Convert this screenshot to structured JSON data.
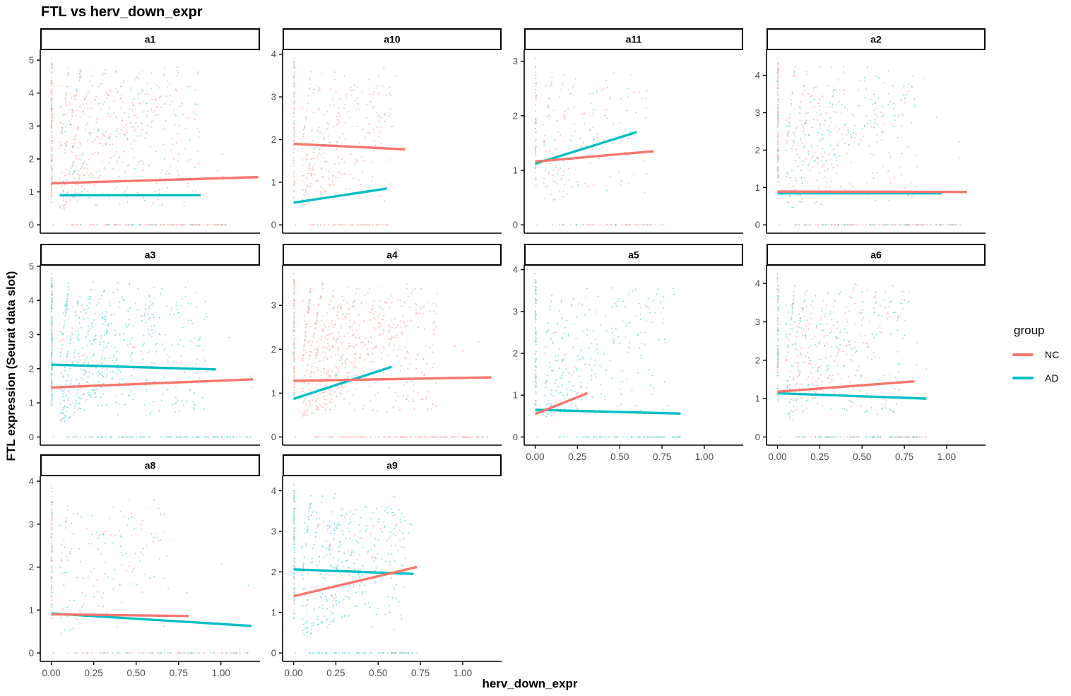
{
  "title": "FTL vs herv_down_expr",
  "axes": {
    "x_label": "herv_down_expr",
    "y_label": "FTL expression (Seurat data slot)"
  },
  "legend": {
    "title": "group",
    "items": [
      {
        "label": "NC",
        "color": "#F8766D"
      },
      {
        "label": "AD",
        "color": "#00BFC4"
      }
    ]
  },
  "colors": {
    "nc": "#F8766D",
    "ad": "#00BFC4",
    "nc_point": "rgba(248,118,109,0.45)",
    "ad_point": "rgba(0,191,196,0.45)",
    "tick_text": "#4d4d4d",
    "axis_line": "#000000",
    "strip_bg": "#ffffff",
    "strip_border": "#000000"
  },
  "chart_data": {
    "type": "scatter",
    "title": "FTL vs herv_down_expr",
    "xlabel": "herv_down_expr",
    "ylabel": "FTL expression (Seurat data slot)",
    "legend_position": "right",
    "grid": false,
    "xlim": [
      -0.065,
      1.23
    ],
    "x_ticks": {
      "values": [
        0,
        0.25,
        0.5,
        0.75,
        1.0
      ],
      "labels": [
        "0.00",
        "0.25",
        "0.50",
        "0.75",
        "1.00"
      ]
    },
    "series_groups": [
      "NC",
      "AD"
    ],
    "facets": [
      {
        "label": "a1",
        "row": 0,
        "col": 0,
        "show_x": false,
        "yticks": [
          0,
          1,
          2,
          3,
          4,
          5
        ],
        "ymax": 5.05,
        "nc_line": [
          0.0,
          1.26,
          1.22,
          1.45
        ],
        "ad_line": [
          0.05,
          0.9,
          0.88,
          0.9
        ],
        "cloud": {
          "seed": 101,
          "strip_n": 150,
          "strip_lo": 0.6,
          "strip_frac_ad": 0.12,
          "cloud_n": 520,
          "zero_n": 140,
          "frac_ad": 0.18,
          "x_max": 0.95,
          "zero_xmax": 1.03
        }
      },
      {
        "label": "a10",
        "row": 0,
        "col": 1,
        "show_x": false,
        "yticks": [
          0,
          1,
          2,
          3,
          4
        ],
        "ymax": 3.9,
        "nc_line": [
          0.0,
          1.9,
          0.66,
          1.77
        ],
        "ad_line": [
          0.0,
          0.52,
          0.55,
          0.85
        ],
        "cloud": {
          "seed": 102,
          "strip_n": 70,
          "strip_lo": 0.5,
          "strip_frac_ad": 0.06,
          "cloud_n": 270,
          "zero_n": 55,
          "frac_ad": 0.06,
          "x_max": 0.63,
          "zero_xmax": 0.56
        }
      },
      {
        "label": "a11",
        "row": 0,
        "col": 2,
        "show_x": false,
        "yticks": [
          0,
          1,
          2,
          3
        ],
        "ymax": 3.05,
        "nc_line": [
          0.0,
          1.16,
          0.7,
          1.35
        ],
        "ad_line": [
          0.0,
          1.12,
          0.6,
          1.7
        ],
        "cloud": {
          "seed": 103,
          "strip_n": 55,
          "strip_lo": 0.7,
          "strip_frac_ad": 0.2,
          "cloud_n": 170,
          "zero_n": 60,
          "frac_ad": 0.25,
          "x_max": 0.72,
          "zero_xmax": 0.76
        }
      },
      {
        "label": "a2",
        "row": 0,
        "col": 3,
        "show_x": false,
        "yticks": [
          0,
          1,
          2,
          3,
          4
        ],
        "ymax": 4.45,
        "nc_line": [
          0.0,
          0.89,
          1.12,
          0.88
        ],
        "ad_line": [
          0.0,
          0.845,
          0.97,
          0.845
        ],
        "cloud": {
          "seed": 104,
          "strip_n": 150,
          "strip_lo": 1.1,
          "strip_frac_ad": 0.12,
          "cloud_n": 380,
          "zero_n": 130,
          "frac_ad": 0.42,
          "x_max": 0.9,
          "zero_xmax": 1.1
        }
      },
      {
        "label": "a3",
        "row": 1,
        "col": 0,
        "show_x": false,
        "yticks": [
          0,
          1,
          2,
          3,
          4,
          5
        ],
        "ymax": 4.78,
        "nc_line": [
          0.0,
          1.45,
          1.19,
          1.69
        ],
        "ad_line": [
          0.0,
          2.12,
          0.97,
          1.98
        ],
        "cloud": {
          "seed": 105,
          "strip_n": 150,
          "strip_lo": 0.9,
          "strip_frac_ad": 0.75,
          "cloud_n": 560,
          "zero_n": 120,
          "frac_ad": 0.9,
          "x_max": 1.0,
          "zero_xmax": 1.18
        }
      },
      {
        "label": "a4",
        "row": 1,
        "col": 1,
        "show_x": false,
        "yticks": [
          0,
          1,
          2,
          3
        ],
        "ymax": 3.72,
        "nc_line": [
          0.0,
          1.28,
          1.17,
          1.36
        ],
        "ad_line": [
          0.0,
          0.87,
          0.58,
          1.6
        ],
        "cloud": {
          "seed": 106,
          "strip_n": 120,
          "strip_lo": 0.8,
          "strip_frac_ad": 0.04,
          "cloud_n": 620,
          "zero_n": 150,
          "frac_ad": 0.04,
          "x_max": 0.92,
          "zero_xmax": 1.15
        }
      },
      {
        "label": "a5",
        "row": 1,
        "col": 2,
        "show_x": true,
        "yticks": [
          0,
          1,
          2,
          3,
          4
        ],
        "ymax": 3.9,
        "nc_line": [
          0.0,
          0.55,
          0.31,
          1.05
        ],
        "ad_line": [
          0.0,
          0.65,
          0.86,
          0.56
        ],
        "cloud": {
          "seed": 107,
          "strip_n": 90,
          "strip_lo": 0.6,
          "strip_frac_ad": 0.93,
          "cloud_n": 260,
          "zero_n": 85,
          "frac_ad": 0.93,
          "x_max": 0.86,
          "zero_xmax": 0.86
        }
      },
      {
        "label": "a6",
        "row": 1,
        "col": 3,
        "show_x": true,
        "yticks": [
          0,
          1,
          2,
          3,
          4
        ],
        "ymax": 4.25,
        "nc_line": [
          0.0,
          1.18,
          0.81,
          1.45
        ],
        "ad_line": [
          0.0,
          1.14,
          0.88,
          1.0
        ],
        "cloud": {
          "seed": 108,
          "strip_n": 95,
          "strip_lo": 0.8,
          "strip_frac_ad": 0.55,
          "cloud_n": 430,
          "zero_n": 110,
          "frac_ad": 0.5,
          "x_max": 0.82,
          "zero_xmax": 0.88
        }
      },
      {
        "label": "a8",
        "row": 2,
        "col": 0,
        "show_x": true,
        "yticks": [
          0,
          1,
          2,
          3,
          4
        ],
        "ymax": 3.92,
        "nc_line": [
          0.0,
          0.9,
          0.81,
          0.86
        ],
        "ad_line": [
          0.0,
          0.92,
          1.18,
          0.63
        ],
        "cloud": {
          "seed": 109,
          "strip_n": 85,
          "strip_lo": 0.8,
          "strip_frac_ad": 0.5,
          "cloud_n": 150,
          "zero_n": 85,
          "frac_ad": 0.5,
          "x_max": 0.75,
          "zero_xmax": 1.18
        }
      },
      {
        "label": "a9",
        "row": 2,
        "col": 1,
        "show_x": true,
        "yticks": [
          0,
          1,
          2,
          3,
          4
        ],
        "ymax": 4.15,
        "nc_line": [
          0.0,
          1.4,
          0.73,
          2.12
        ],
        "ad_line": [
          0.0,
          2.06,
          0.71,
          1.95
        ],
        "cloud": {
          "seed": 110,
          "strip_n": 100,
          "strip_lo": 0.8,
          "strip_frac_ad": 0.88,
          "cloud_n": 400,
          "zero_n": 75,
          "frac_ad": 0.88,
          "x_max": 0.72,
          "zero_xmax": 0.73
        }
      }
    ]
  }
}
